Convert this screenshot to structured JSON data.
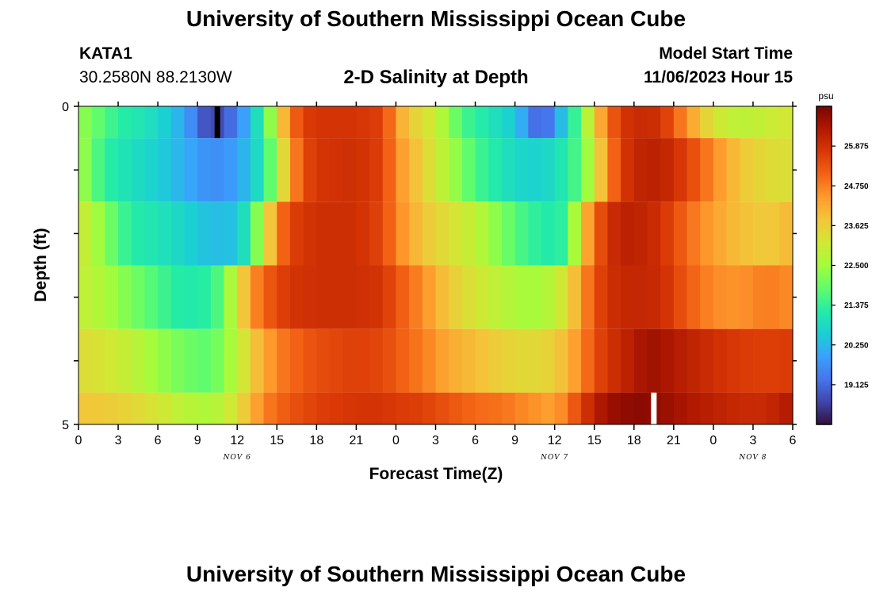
{
  "page": {
    "title": "University of Southern Mississippi Ocean Cube",
    "station": "KATA1",
    "coordinates": "30.2580N  88.2130W",
    "subtitle": "2-D Salinity at Depth",
    "model_start_label": "Model Start Time",
    "model_start_value": "11/06/2023 Hour 15",
    "footer_title": "University of Southern Mississippi Ocean Cube"
  },
  "chart_data": {
    "type": "heatmap",
    "title": "2-D Salinity at Depth",
    "xlabel": "Forecast Time(Z)",
    "ylabel": "Depth (ft)",
    "x_hours": [
      0,
      3,
      6,
      9,
      12,
      15,
      18,
      21,
      24,
      27,
      30,
      33,
      36,
      39,
      42,
      45,
      48,
      51,
      54
    ],
    "x_tick_labels": [
      "0",
      "3",
      "6",
      "9",
      "12",
      "15",
      "18",
      "21",
      "0",
      "3",
      "6",
      "9",
      "12",
      "15",
      "18",
      "21",
      "0",
      "3",
      "6"
    ],
    "x_range_hours": [
      0,
      54
    ],
    "date_labels": [
      {
        "hour": 12,
        "label": "NOV 6"
      },
      {
        "hour": 36,
        "label": "NOV 7"
      },
      {
        "hour": 51,
        "label": "NOV 8"
      }
    ],
    "y_range": [
      0,
      5
    ],
    "y_tick_labels": [
      "0",
      "5"
    ],
    "depth_layers": [
      0.5,
      1.5,
      2.5,
      3.5,
      4.5,
      5.0
    ],
    "colorbar": {
      "unit": "psu",
      "min": 18.0,
      "max": 27.0,
      "tick_values": [
        19.125,
        20.25,
        21.375,
        22.5,
        23.625,
        24.75,
        25.875
      ],
      "tick_labels": [
        "19.125",
        "20.250",
        "21.375",
        "22.500",
        "23.625",
        "24.750",
        "25.875"
      ],
      "colors": [
        "#30123b",
        "#4145ab",
        "#4675ed",
        "#39a2fc",
        "#1bcfd4",
        "#24eca6",
        "#61fc6c",
        "#a4fc3b",
        "#d1e834",
        "#f3c63a",
        "#fe9b2d",
        "#f36315",
        "#d93806",
        "#b11901",
        "#7a0402"
      ]
    },
    "series": [
      {
        "name": "layer-1",
        "depth_top": 0,
        "depth_bottom": 0.5,
        "hours": [
          0,
          3,
          6,
          8,
          10,
          12,
          14,
          15,
          16,
          17,
          18,
          21,
          23,
          24,
          25,
          27,
          29,
          33,
          35,
          37,
          38,
          39,
          40,
          41,
          42,
          44,
          46,
          48,
          50,
          54
        ],
        "values": [
          22.4,
          21.3,
          20.8,
          20.0,
          18.5,
          19.4,
          21.4,
          23.2,
          24.8,
          25.6,
          25.8,
          25.8,
          25.6,
          24.4,
          23.7,
          23.0,
          21.6,
          20.5,
          18.8,
          20.8,
          22.0,
          23.6,
          24.9,
          25.7,
          26.0,
          25.9,
          24.5,
          23.2,
          22.8,
          23.2
        ]
      },
      {
        "name": "layer-2",
        "depth_top": 0.5,
        "depth_bottom": 1.5,
        "hours": [
          0,
          2,
          4,
          6,
          8,
          10,
          12,
          14,
          15,
          16,
          17,
          18,
          21,
          23,
          24,
          26,
          28,
          30,
          32,
          34,
          36,
          38,
          39,
          40,
          41,
          42,
          44,
          46,
          48,
          50,
          52,
          54
        ],
        "values": [
          22.6,
          21.3,
          20.9,
          20.6,
          20.1,
          19.6,
          19.9,
          21.1,
          22.6,
          24.3,
          25.4,
          25.8,
          25.9,
          25.6,
          24.6,
          23.6,
          22.6,
          21.6,
          21.0,
          20.6,
          20.8,
          21.8,
          23.1,
          24.6,
          25.6,
          26.1,
          26.2,
          25.6,
          24.6,
          23.8,
          23.4,
          23.3
        ]
      },
      {
        "name": "layer-3",
        "depth_top": 1.5,
        "depth_bottom": 2.5,
        "hours": [
          0,
          2,
          4,
          6,
          8,
          10,
          12,
          13,
          14,
          15,
          16,
          18,
          21,
          23,
          24,
          26,
          28,
          30,
          32,
          34,
          36,
          37,
          38,
          39,
          40,
          41,
          42,
          44,
          46,
          48,
          50,
          52,
          54
        ],
        "values": [
          23.2,
          22.2,
          21.2,
          21.0,
          20.7,
          20.3,
          20.4,
          21.4,
          23.0,
          24.6,
          25.6,
          25.9,
          25.9,
          25.5,
          24.7,
          23.8,
          23.3,
          22.9,
          22.1,
          21.4,
          21.1,
          21.5,
          23.6,
          25.0,
          25.8,
          26.2,
          26.2,
          25.9,
          25.0,
          24.3,
          23.9,
          23.7,
          24.0
        ]
      },
      {
        "name": "layer-4",
        "depth_top": 2.5,
        "depth_bottom": 3.5,
        "hours": [
          0,
          2,
          4,
          6,
          8,
          10,
          11,
          12,
          13,
          14,
          16,
          18,
          21,
          23,
          24,
          26,
          28,
          30,
          32,
          34,
          36,
          37,
          38,
          39,
          40,
          42,
          44,
          46,
          48,
          50,
          52,
          54
        ],
        "values": [
          23.0,
          22.6,
          22.1,
          21.6,
          21.1,
          21.3,
          22.0,
          23.2,
          24.4,
          25.1,
          25.8,
          25.9,
          25.9,
          25.8,
          25.3,
          24.6,
          23.7,
          23.2,
          22.8,
          22.5,
          22.8,
          23.4,
          24.4,
          25.3,
          25.9,
          26.1,
          26.0,
          25.2,
          24.6,
          24.5,
          24.8,
          24.6
        ]
      },
      {
        "name": "layer-5",
        "depth_top": 3.5,
        "depth_bottom": 4.5,
        "hours": [
          0,
          2,
          4,
          6,
          8,
          10,
          12,
          13,
          14,
          15,
          16,
          18,
          21,
          23,
          24,
          26,
          28,
          30,
          32,
          34,
          36,
          38,
          39,
          40,
          42,
          43,
          44,
          46,
          48,
          50,
          52,
          54
        ],
        "values": [
          23.4,
          23.2,
          22.9,
          22.4,
          22.0,
          21.8,
          22.8,
          23.6,
          24.2,
          24.7,
          25.0,
          25.4,
          25.6,
          25.5,
          25.2,
          24.8,
          24.2,
          23.9,
          23.6,
          23.4,
          23.6,
          24.6,
          25.4,
          25.8,
          26.3,
          26.6,
          26.5,
          26.2,
          25.9,
          25.7,
          25.6,
          25.7
        ]
      },
      {
        "name": "layer-6",
        "depth_top": 4.5,
        "depth_bottom": 5.0,
        "hours": [
          0,
          2,
          4,
          6,
          8,
          10,
          12,
          13,
          14,
          15,
          16,
          18,
          21,
          23,
          24,
          26,
          28,
          30,
          32,
          34,
          36,
          37,
          38,
          39,
          40,
          42,
          43,
          44,
          46,
          48,
          50,
          52,
          54
        ],
        "values": [
          23.8,
          23.7,
          23.5,
          23.2,
          22.8,
          22.6,
          23.3,
          24.0,
          24.7,
          25.0,
          25.3,
          25.6,
          25.8,
          25.8,
          25.7,
          25.6,
          25.3,
          25.0,
          24.9,
          24.6,
          24.3,
          24.9,
          25.6,
          26.2,
          26.6,
          26.8,
          26.8,
          26.7,
          26.4,
          26.2,
          26.0,
          26.0,
          26.4
        ]
      }
    ],
    "markers": [
      {
        "name": "min-salinity-marker",
        "hour": 10.5,
        "depth_top": 0,
        "depth_bottom": 0.5,
        "color": "#000000"
      },
      {
        "name": "max-salinity-marker",
        "hour": 43.5,
        "depth_top": 4.5,
        "depth_bottom": 5.0,
        "color": "#ffffff"
      }
    ]
  }
}
